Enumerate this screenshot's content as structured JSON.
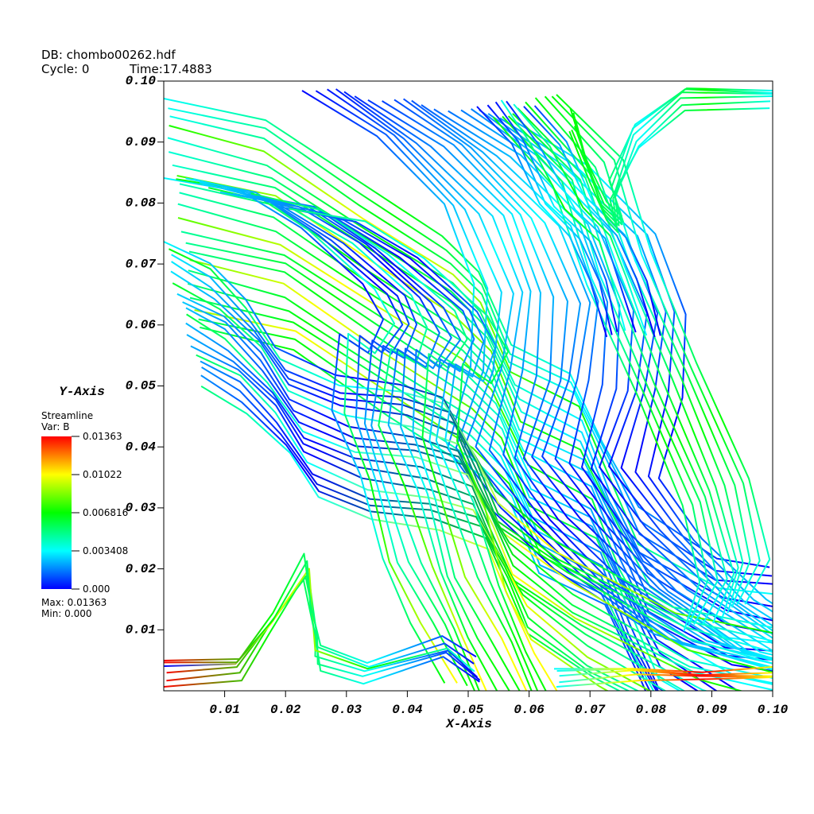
{
  "chart_data": {
    "type": "streamline",
    "header": {
      "db": "DB: chombo00262.hdf",
      "cycle": "Cycle: 0",
      "time": "Time:17.4883"
    },
    "x_label": "X-Axis",
    "y_label": "Y-Axis",
    "xlim": [
      0,
      0.1
    ],
    "ylim": [
      0,
      0.1
    ],
    "xticks": [
      0.01,
      0.02,
      0.03,
      0.04,
      0.05,
      0.06,
      0.07,
      0.08,
      0.09,
      {
        "value": 0.1,
        "label": "0.10"
      }
    ],
    "yticks": [
      0.01,
      0.02,
      0.03,
      0.04,
      0.05,
      0.06,
      0.07,
      0.08,
      0.09,
      {
        "value": 0.1,
        "label": "0.10"
      }
    ],
    "legend": {
      "title": "Streamline",
      "variable": "Var: B",
      "range": [
        0,
        0.01363
      ],
      "ticks": [
        0.01363,
        0.01022,
        0.006816,
        0.003408,
        {
          "value": 0,
          "label": "0.000"
        }
      ],
      "max_text": "Max: 0.01363",
      "min_text": "Min: 0.000",
      "colormap": [
        "#0000ff",
        "#00ffff",
        "#00ff00",
        "#ffff00",
        "#ff0000"
      ]
    }
  }
}
